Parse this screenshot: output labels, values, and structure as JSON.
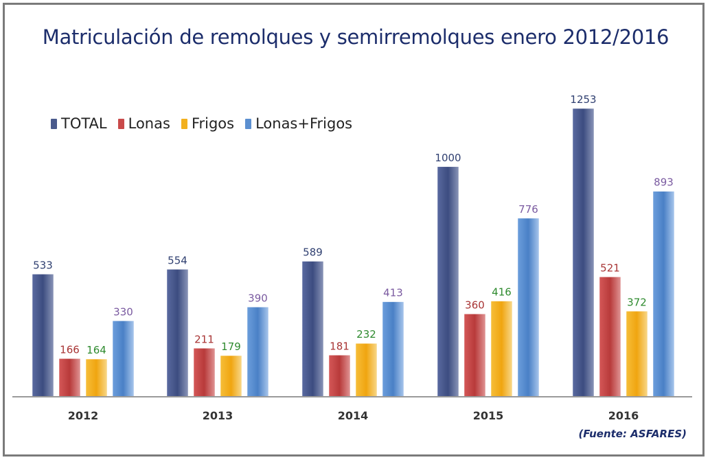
{
  "chart_data": {
    "type": "bar",
    "title": "Matriculación de remolques y semirremolques enero 2012/2016",
    "categories": [
      "2012",
      "2013",
      "2014",
      "2015",
      "2016"
    ],
    "series": [
      {
        "name": "TOTAL",
        "values": [
          533,
          554,
          589,
          1000,
          1253
        ],
        "color": "#4a5a8c",
        "label_color": "#2f3f70"
      },
      {
        "name": "Lonas",
        "values": [
          166,
          211,
          181,
          360,
          521
        ],
        "color": "#c94a4a",
        "label_color": "#a83434"
      },
      {
        "name": "Frigos",
        "values": [
          164,
          179,
          232,
          416,
          372
        ],
        "color": "#f2b01e",
        "label_color": "#2e8a2e"
      },
      {
        "name": "Lonas+Frigos",
        "values": [
          330,
          390,
          413,
          776,
          893
        ],
        "color": "#5b8fd0",
        "label_color": "#7a5aa0"
      }
    ],
    "xlabel": "",
    "ylabel": "",
    "ylim": [
      0,
      1253
    ],
    "grid": false,
    "legend": "top-left",
    "source": "(Fuente: ASFARES)"
  }
}
